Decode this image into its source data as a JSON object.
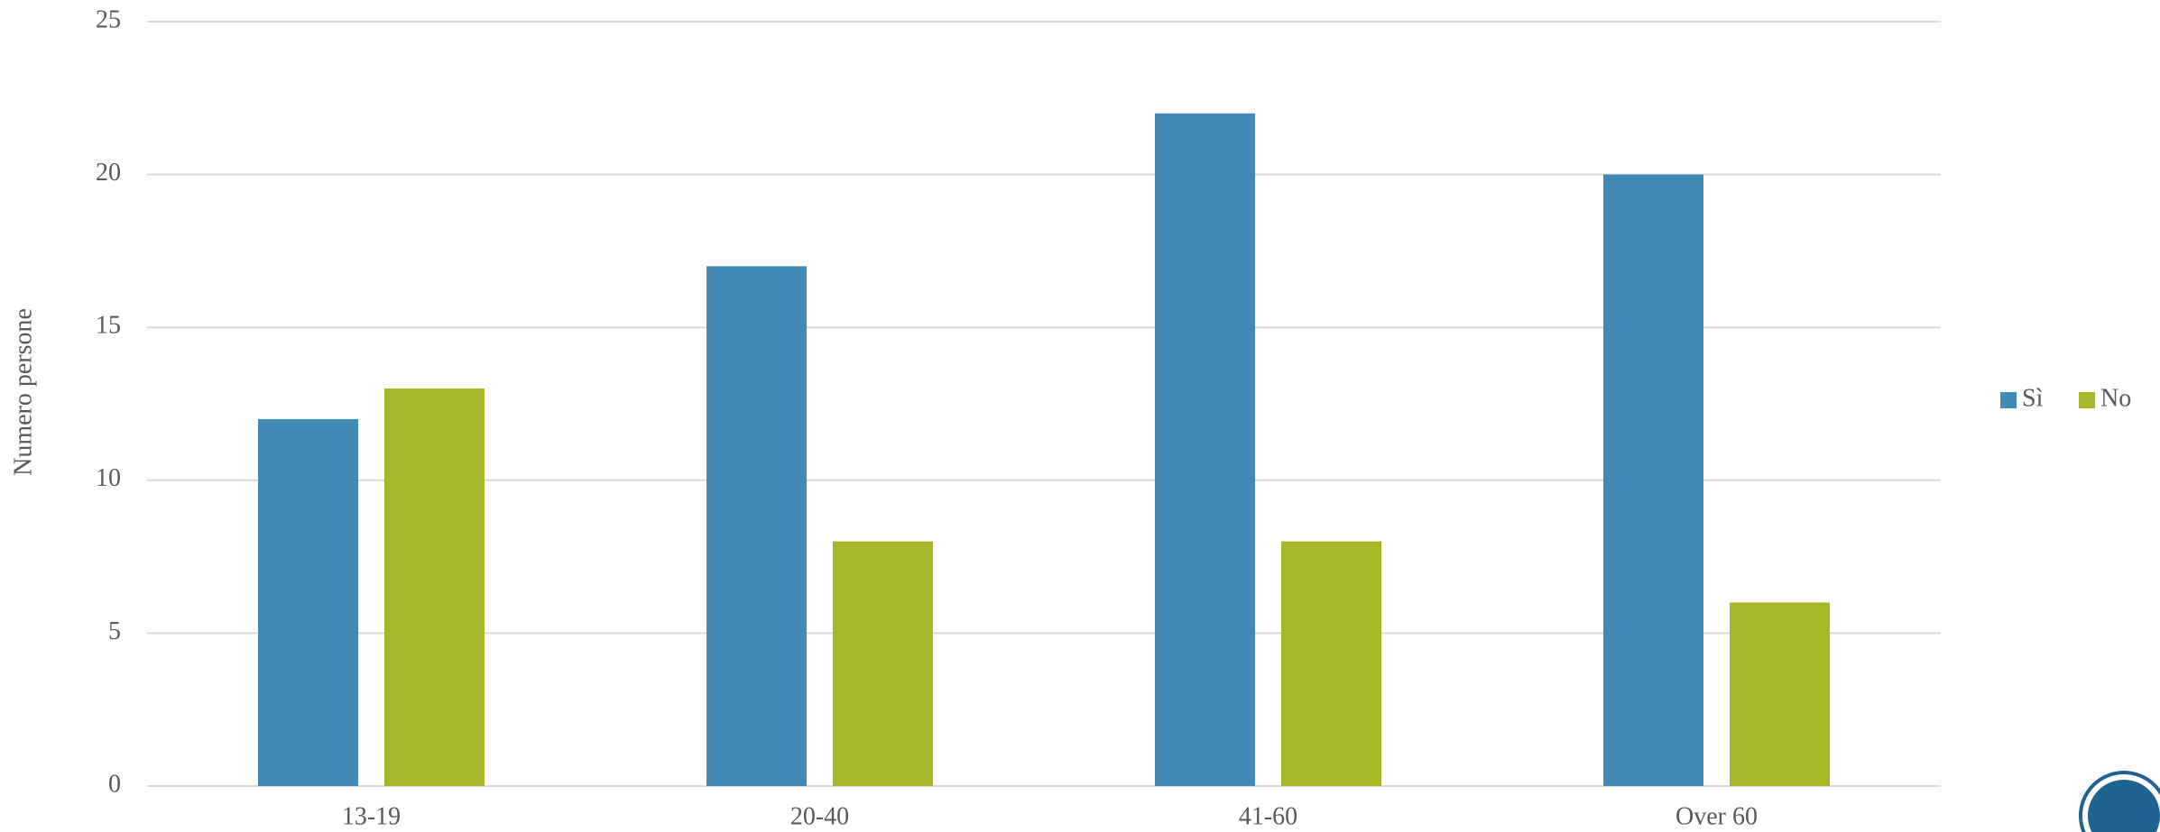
{
  "chart_data": {
    "type": "bar",
    "y_label": "Numero persone",
    "categories": [
      "13-19",
      "20-40",
      "41-60",
      "Over 60"
    ],
    "series": [
      {
        "name": "Sì",
        "color": "#418ab3",
        "values": [
          12,
          17,
          22,
          20
        ]
      },
      {
        "name": "No",
        "color": "#a6b727",
        "values": [
          13,
          8,
          8,
          6
        ]
      }
    ],
    "ylim": [
      0,
      25
    ],
    "yticks": [
      0,
      5,
      10,
      15,
      20,
      25
    ],
    "grid": true,
    "legend": "right"
  }
}
